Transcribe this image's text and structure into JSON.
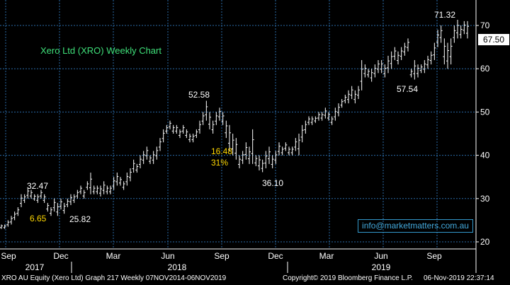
{
  "chart_data": {
    "type": "ohlc",
    "title": "Xero Ltd (XRO) Weekly Chart",
    "y_ticks": [
      20,
      30,
      40,
      50,
      60,
      70
    ],
    "ylim": [
      19,
      76
    ],
    "last_price": "67.50",
    "x_month_labels": [
      "Sep",
      "Dec",
      "Mar",
      "Jun",
      "Sep",
      "Dec",
      "Mar",
      "Jun",
      "Sep"
    ],
    "x_year_labels": [
      "2017",
      "2018",
      "2019"
    ],
    "annotations": [
      {
        "text": "32.47",
        "color": "white"
      },
      {
        "text": "6.65",
        "color": "yellow"
      },
      {
        "text": "25.82",
        "color": "white"
      },
      {
        "text": "52.58",
        "color": "white"
      },
      {
        "text": "16.48",
        "color": "yellow"
      },
      {
        "text": "31%",
        "color": "yellow"
      },
      {
        "text": "36.10",
        "color": "white"
      },
      {
        "text": "57.54",
        "color": "white"
      },
      {
        "text": "71.32",
        "color": "white"
      }
    ],
    "grid": true,
    "weekly_high_low": [
      [
        24,
        23
      ],
      [
        24,
        23
      ],
      [
        25,
        23.5
      ],
      [
        26,
        24
      ],
      [
        27,
        25
      ],
      [
        28,
        26
      ],
      [
        31,
        28
      ],
      [
        31,
        29
      ],
      [
        32.5,
        30
      ],
      [
        32,
        30
      ],
      [
        31,
        29.5
      ],
      [
        31,
        29
      ],
      [
        32,
        30
      ],
      [
        31,
        29
      ],
      [
        29,
        27
      ],
      [
        28,
        26
      ],
      [
        30,
        27
      ],
      [
        29,
        26
      ],
      [
        30,
        27.5
      ],
      [
        29,
        26.5
      ],
      [
        30,
        28
      ],
      [
        31,
        28.5
      ],
      [
        31,
        29
      ],
      [
        32,
        30
      ],
      [
        33,
        31
      ],
      [
        32,
        30
      ],
      [
        34,
        32
      ],
      [
        36,
        31
      ],
      [
        33,
        31
      ],
      [
        33,
        31
      ],
      [
        33,
        30.5
      ],
      [
        34,
        31
      ],
      [
        33,
        31
      ],
      [
        33,
        31
      ],
      [
        35,
        32
      ],
      [
        36,
        33
      ],
      [
        35,
        33
      ],
      [
        34,
        32
      ],
      [
        36,
        33
      ],
      [
        37,
        34
      ],
      [
        39,
        36
      ],
      [
        38,
        36
      ],
      [
        40,
        37
      ],
      [
        41,
        38
      ],
      [
        42,
        39
      ],
      [
        40,
        38
      ],
      [
        41,
        38
      ],
      [
        42,
        39
      ],
      [
        44,
        41
      ],
      [
        46,
        43
      ],
      [
        47,
        45
      ],
      [
        48,
        46
      ],
      [
        47,
        45
      ],
      [
        47,
        45
      ],
      [
        46,
        44
      ],
      [
        47,
        45
      ],
      [
        46,
        44
      ],
      [
        45,
        43
      ],
      [
        45,
        43
      ],
      [
        46,
        44
      ],
      [
        48,
        45
      ],
      [
        50,
        47
      ],
      [
        52.6,
        48
      ],
      [
        50,
        46
      ],
      [
        48,
        45
      ],
      [
        50,
        47
      ],
      [
        51,
        48
      ],
      [
        50,
        47
      ],
      [
        48,
        44
      ],
      [
        47,
        41
      ],
      [
        45,
        40
      ],
      [
        44,
        39
      ],
      [
        40,
        37
      ],
      [
        41,
        38
      ],
      [
        43,
        39
      ],
      [
        42,
        38
      ],
      [
        46,
        38
      ],
      [
        40,
        37.5
      ],
      [
        40,
        36.5
      ],
      [
        39,
        36.1
      ],
      [
        41,
        37
      ],
      [
        42,
        38
      ],
      [
        40,
        37
      ],
      [
        41,
        38
      ],
      [
        43,
        40
      ],
      [
        42,
        40
      ],
      [
        43,
        41
      ],
      [
        42,
        40
      ],
      [
        42,
        40
      ],
      [
        44,
        41
      ],
      [
        45,
        40
      ],
      [
        47,
        43
      ],
      [
        48,
        45
      ],
      [
        49,
        47
      ],
      [
        49,
        47
      ],
      [
        49,
        47.5
      ],
      [
        50,
        48
      ],
      [
        50,
        48
      ],
      [
        51,
        48.5
      ],
      [
        50,
        48
      ],
      [
        49,
        47
      ],
      [
        51,
        48
      ],
      [
        52,
        49
      ],
      [
        53,
        51
      ],
      [
        54,
        52
      ],
      [
        55,
        52
      ],
      [
        56,
        53
      ],
      [
        55,
        52
      ],
      [
        56,
        53
      ],
      [
        62,
        55
      ],
      [
        61,
        58
      ],
      [
        60,
        58
      ],
      [
        60,
        57
      ],
      [
        61,
        58
      ],
      [
        62,
        59
      ],
      [
        62,
        59
      ],
      [
        61,
        58
      ],
      [
        63,
        59
      ],
      [
        64,
        60
      ],
      [
        65,
        62
      ],
      [
        64,
        61
      ],
      [
        65,
        62
      ],
      [
        66,
        63
      ],
      [
        67,
        64
      ],
      [
        60,
        58
      ],
      [
        62,
        57.5
      ],
      [
        61,
        58
      ],
      [
        61,
        59
      ],
      [
        62,
        59
      ],
      [
        63,
        60
      ],
      [
        64,
        61
      ],
      [
        66,
        62
      ],
      [
        69,
        65
      ],
      [
        70,
        66
      ],
      [
        67,
        61
      ],
      [
        66,
        60
      ],
      [
        67,
        61
      ],
      [
        70,
        66
      ],
      [
        71.3,
        67
      ],
      [
        70,
        67
      ],
      [
        71,
        68
      ],
      [
        71,
        67
      ]
    ]
  },
  "footer": {
    "left": "XRO AU Equity (Xero Ltd) Graph 217  Weekly 07NOV2014-06NOV2019",
    "middle": "Copyright© 2019 Bloomberg Finance L.P.",
    "right": "06-Nov-2019 22:37:14"
  },
  "email": "info@marketmatters.com.au",
  "colors": {
    "background": "#000000",
    "grid": "#2a6aa6",
    "bars": "#ffffff",
    "accent_yellow": "#ffd800",
    "email": "#44aadd"
  }
}
